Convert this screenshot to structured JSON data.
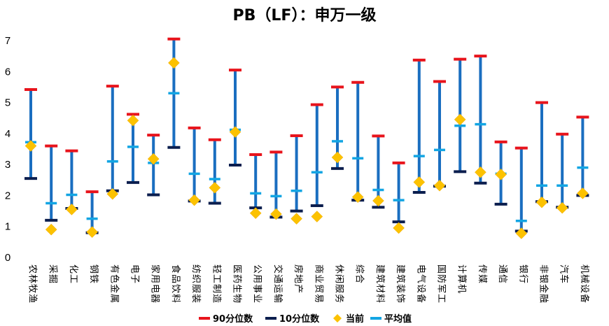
{
  "chart_data": {
    "type": "range-dot",
    "title": "PB（LF）：申万一级",
    "ylim": [
      0,
      7
    ],
    "yticks": [
      0,
      1,
      2,
      3,
      4,
      5,
      6,
      7
    ],
    "grid": false,
    "legend_position": "bottom",
    "categories": [
      "农林牧渔",
      "采掘",
      "化工",
      "钢铁",
      "有色金属",
      "电子",
      "家用电器",
      "食品饮料",
      "纺织服装",
      "轻工制造",
      "医药生物",
      "公用事业",
      "交通运输",
      "房地产",
      "商业贸易",
      "休闲服务",
      "综合",
      "建筑材料",
      "建筑装饰",
      "电气设备",
      "国防军工",
      "计算机",
      "传媒",
      "通信",
      "银行",
      "非银金融",
      "汽车",
      "机械设备"
    ],
    "series": [
      {
        "name": "90分位数",
        "color": "#e8141c",
        "values": [
          5.42,
          3.6,
          3.44,
          2.12,
          5.53,
          4.62,
          3.95,
          7.05,
          4.18,
          3.8,
          6.05,
          3.32,
          3.4,
          3.93,
          4.93,
          5.5,
          5.65,
          3.92,
          3.05,
          6.37,
          5.68,
          6.4,
          6.5,
          3.73,
          3.53,
          5.0,
          3.98,
          4.53
        ]
      },
      {
        "name": "10分位数",
        "color": "#0b1e4e",
        "values": [
          2.55,
          1.2,
          1.58,
          0.8,
          2.15,
          2.42,
          2.02,
          3.55,
          1.82,
          1.75,
          2.98,
          1.6,
          1.3,
          1.5,
          1.67,
          2.87,
          1.85,
          1.62,
          1.15,
          2.1,
          2.3,
          2.77,
          2.4,
          1.72,
          0.85,
          1.8,
          1.62,
          2.0
        ]
      },
      {
        "name": "当前",
        "color": "#fcc200",
        "values": [
          3.6,
          0.9,
          1.55,
          0.82,
          2.05,
          4.42,
          3.18,
          6.28,
          1.85,
          2.25,
          4.05,
          1.43,
          1.4,
          1.25,
          1.32,
          3.23,
          1.95,
          1.83,
          0.95,
          2.43,
          2.32,
          4.45,
          2.75,
          2.68,
          0.78,
          1.78,
          1.6,
          2.07
        ]
      },
      {
        "name": "平均值",
        "color": "#13a5e3",
        "values": [
          3.72,
          1.75,
          2.02,
          1.25,
          3.1,
          3.57,
          3.05,
          5.3,
          2.7,
          2.53,
          4.12,
          2.07,
          1.98,
          2.15,
          2.75,
          3.75,
          3.2,
          2.18,
          1.85,
          3.27,
          3.47,
          4.25,
          4.3,
          2.7,
          1.18,
          2.32,
          2.32,
          2.9
        ]
      }
    ]
  }
}
